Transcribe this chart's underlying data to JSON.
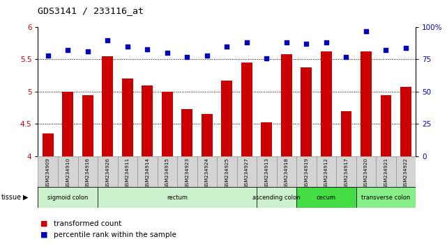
{
  "title": "GDS3141 / 233116_at",
  "samples": [
    "GSM234909",
    "GSM234910",
    "GSM234916",
    "GSM234926",
    "GSM234911",
    "GSM234914",
    "GSM234915",
    "GSM234923",
    "GSM234924",
    "GSM234925",
    "GSM234927",
    "GSM234913",
    "GSM234918",
    "GSM234919",
    "GSM234912",
    "GSM234917",
    "GSM234920",
    "GSM234921",
    "GSM234922"
  ],
  "bar_values": [
    4.35,
    5.0,
    4.95,
    5.55,
    5.2,
    5.1,
    5.0,
    4.73,
    4.65,
    5.17,
    5.45,
    4.52,
    5.58,
    5.38,
    5.62,
    4.7,
    5.62,
    4.95,
    5.07
  ],
  "dot_values": [
    78,
    82,
    81,
    90,
    85,
    83,
    80,
    77,
    78,
    85,
    88,
    76,
    88,
    87,
    88,
    77,
    97,
    82,
    84
  ],
  "ylim_left": [
    4.0,
    6.0
  ],
  "ylim_right": [
    0,
    100
  ],
  "yticks_left": [
    4.0,
    4.5,
    5.0,
    5.5,
    6.0
  ],
  "ytick_labels_left": [
    "4",
    "4.5",
    "5",
    "5.5",
    "6"
  ],
  "yticks_right": [
    0,
    25,
    50,
    75,
    100
  ],
  "ytick_labels_right": [
    "0",
    "25",
    "50",
    "75",
    "100%"
  ],
  "hlines": [
    4.5,
    5.0,
    5.5
  ],
  "bar_color": "#cc0000",
  "dot_color": "#0000bb",
  "bar_bottom": 4.0,
  "tissue_groups": [
    {
      "label": "sigmoid colon",
      "start": 0,
      "end": 3,
      "color": "#ccf0cc"
    },
    {
      "label": "rectum",
      "start": 3,
      "end": 11,
      "color": "#ccf0cc"
    },
    {
      "label": "ascending colon",
      "start": 11,
      "end": 13,
      "color": "#ccf0cc"
    },
    {
      "label": "cecum",
      "start": 13,
      "end": 16,
      "color": "#44dd44"
    },
    {
      "label": "transverse colon",
      "start": 16,
      "end": 19,
      "color": "#88ee88"
    }
  ],
  "legend_bar_label": "transformed count",
  "legend_dot_label": "percentile rank within the sample",
  "bar_color_legend": "#cc0000",
  "dot_color_legend": "#0000bb",
  "xlabel_color": "#cc0000",
  "ylabel_right_color": "#0000bb",
  "plot_bg_color": "#ffffff",
  "sample_band_color": "#d4d4d4",
  "sample_band_edge": "#aaaaaa"
}
